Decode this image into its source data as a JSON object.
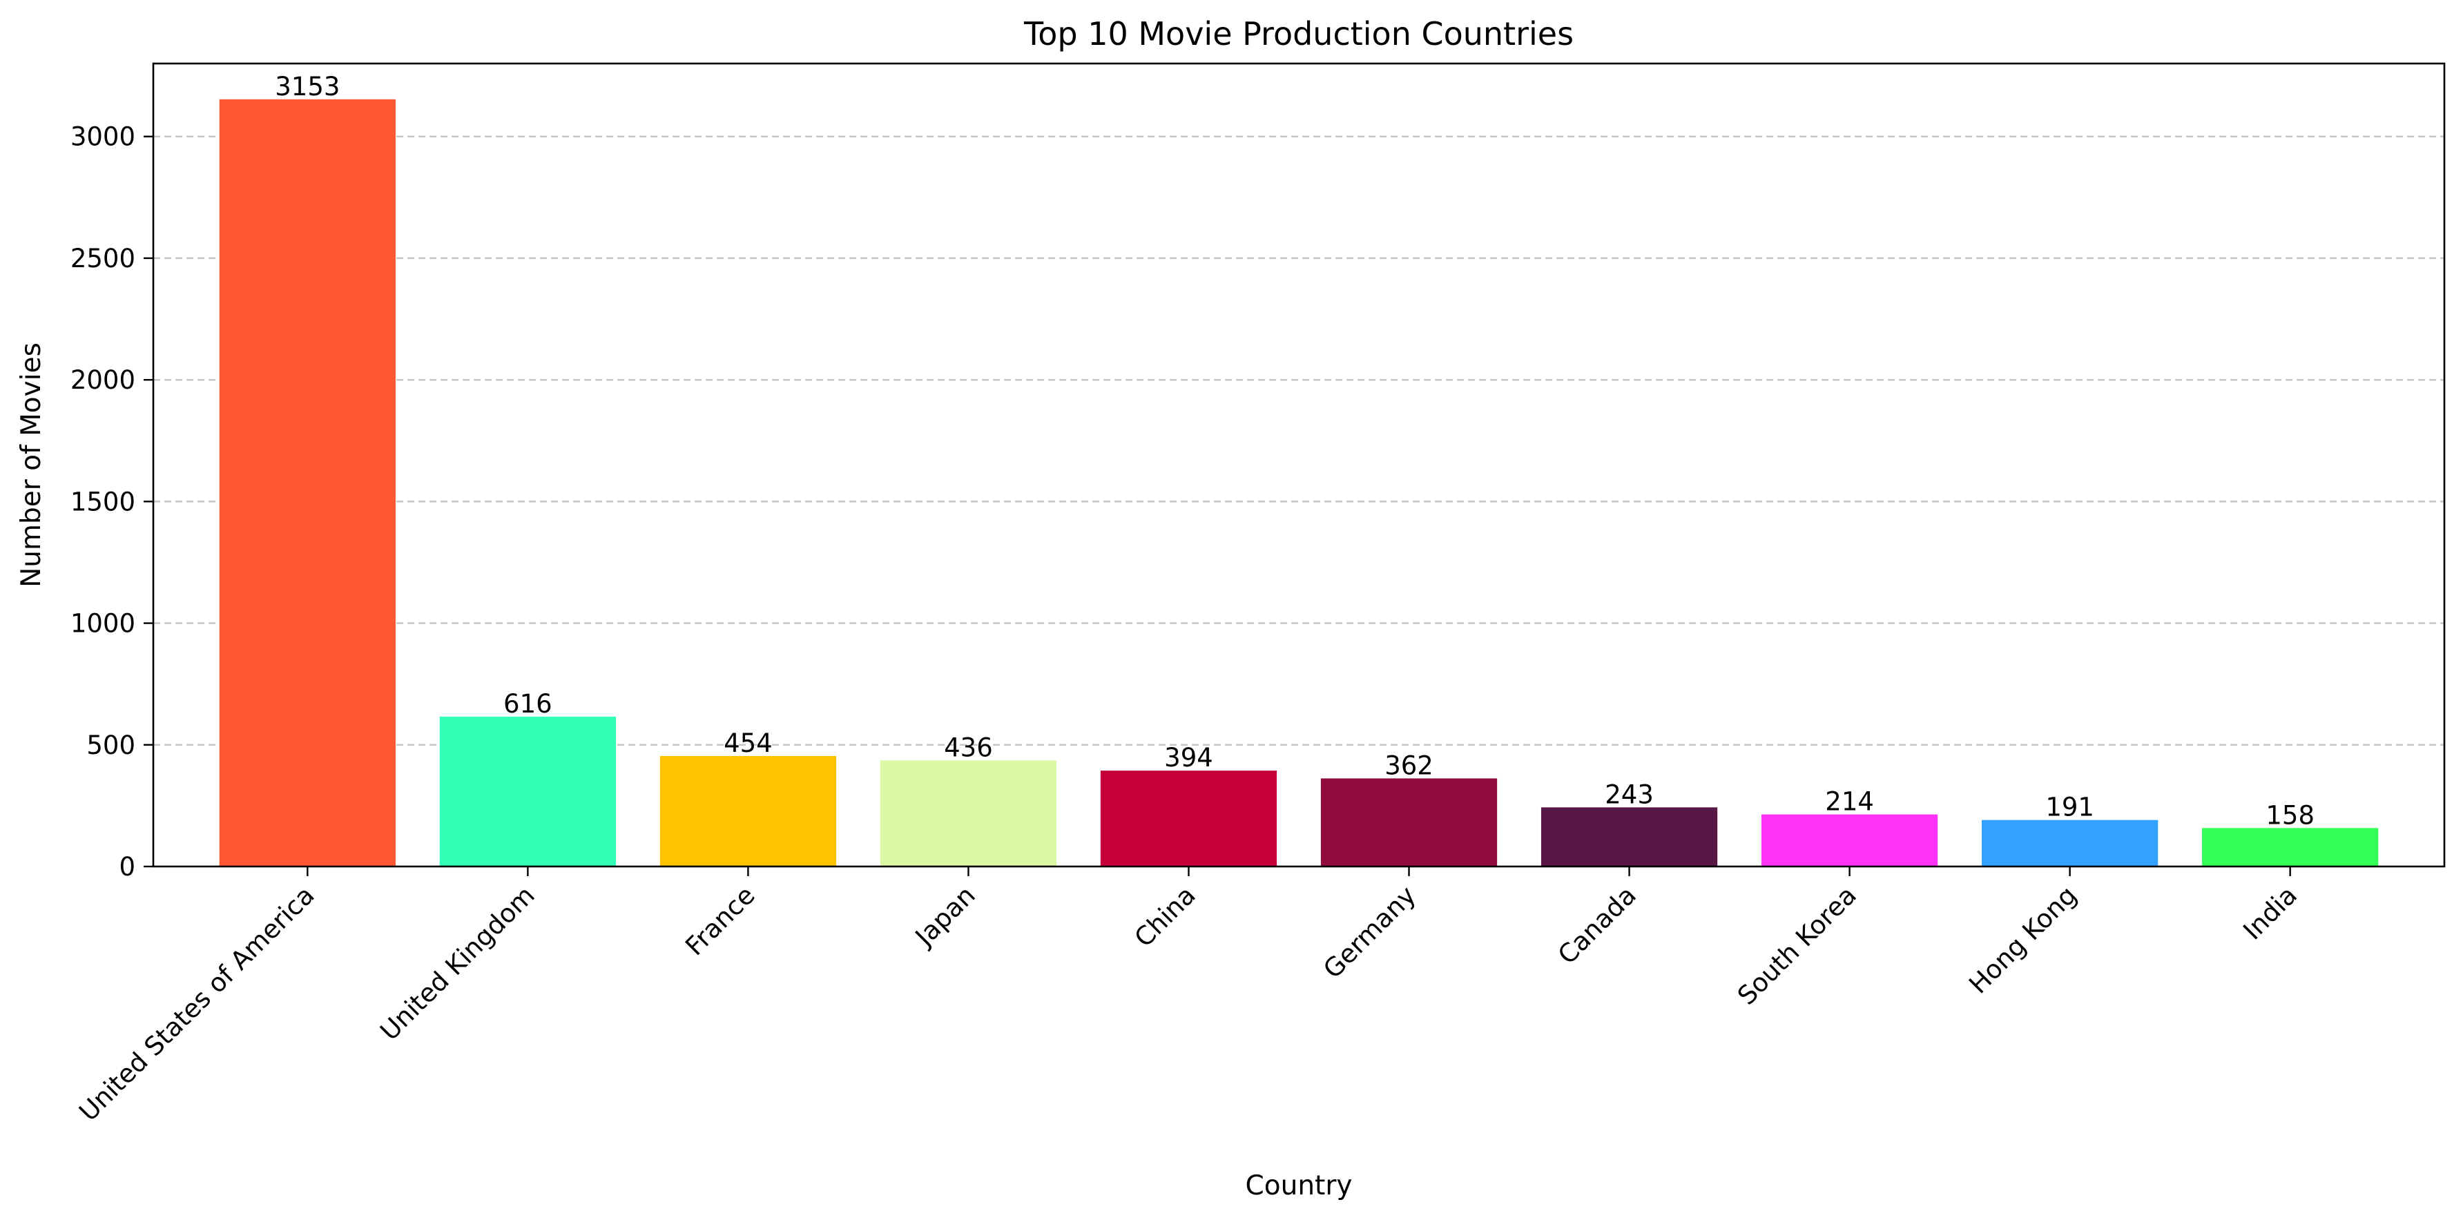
{
  "chart_data": {
    "type": "bar",
    "title": "Top 10 Movie Production Countries",
    "xlabel": "Country",
    "ylabel": "Number of Movies",
    "categories": [
      "United States of America",
      "United Kingdom",
      "France",
      "Japan",
      "China",
      "Germany",
      "Canada",
      "South Korea",
      "Hong Kong",
      "India"
    ],
    "values": [
      3153,
      616,
      454,
      436,
      394,
      362,
      243,
      214,
      191,
      158
    ],
    "colors": [
      "#FF5733",
      "#33FFB5",
      "#FFC300",
      "#DAF7A6",
      "#C70039",
      "#900C3F",
      "#581845",
      "#FF33F6",
      "#33A1FF",
      "#33FF57"
    ],
    "ylim": [
      0,
      3300
    ],
    "yticks": [
      0,
      500,
      1000,
      1500,
      2000,
      2500,
      3000
    ],
    "grid": "y-dashed",
    "data_labels": true
  }
}
